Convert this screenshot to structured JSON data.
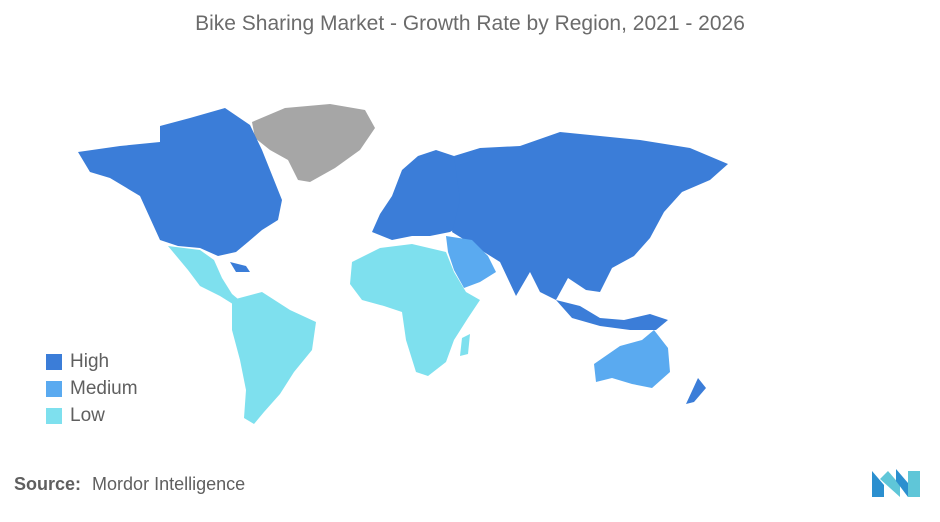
{
  "title": "Bike Sharing Market - Growth Rate by Region, 2021 - 2026",
  "legend": {
    "items": [
      {
        "label": "High",
        "color": "#3b7dd8"
      },
      {
        "label": "Medium",
        "color": "#5aaaf0"
      },
      {
        "label": "Low",
        "color": "#7ee0ee"
      }
    ]
  },
  "regions": {
    "north_america": "High",
    "greenland": "no-data",
    "europe": "High",
    "russia_asia": "High",
    "middle_east": "Medium",
    "central_america": "Low",
    "south_america": "Low",
    "africa": "Low",
    "australia": "Medium",
    "new_zealand": "High"
  },
  "colors": {
    "no_data": "#a6a6a6"
  },
  "source": {
    "label": "Source:",
    "value": "Mordor Intelligence"
  },
  "logo": {
    "name": "mordor-intelligence-logo"
  }
}
